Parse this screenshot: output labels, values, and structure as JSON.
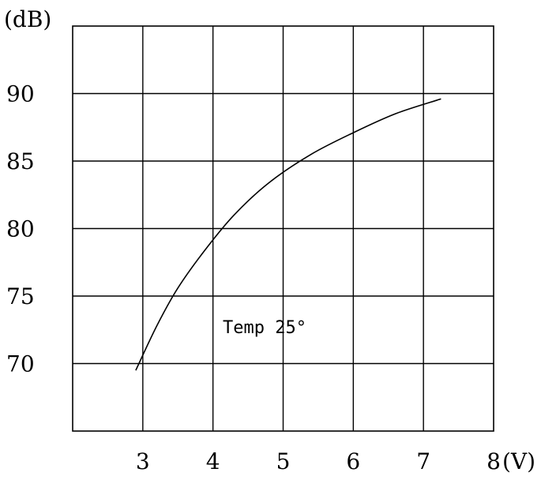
{
  "chart_data": {
    "type": "line",
    "title": "",
    "xlabel": "(V)",
    "ylabel": "(dB)",
    "xlim": [
      2,
      8
    ],
    "ylim": [
      65,
      95
    ],
    "grid": true,
    "x_ticks": [
      3,
      4,
      5,
      6,
      7,
      8
    ],
    "y_ticks": [
      70,
      75,
      80,
      85,
      90
    ],
    "annotation": "Temp 25°",
    "series": [
      {
        "x": [
          2.9,
          3.2,
          3.5,
          3.9,
          4.3,
          4.8,
          5.4,
          6.0,
          6.6,
          7.25
        ],
        "y": [
          69.5,
          72.8,
          75.6,
          78.5,
          81.0,
          83.4,
          85.5,
          87.1,
          88.5,
          89.6
        ]
      }
    ]
  }
}
